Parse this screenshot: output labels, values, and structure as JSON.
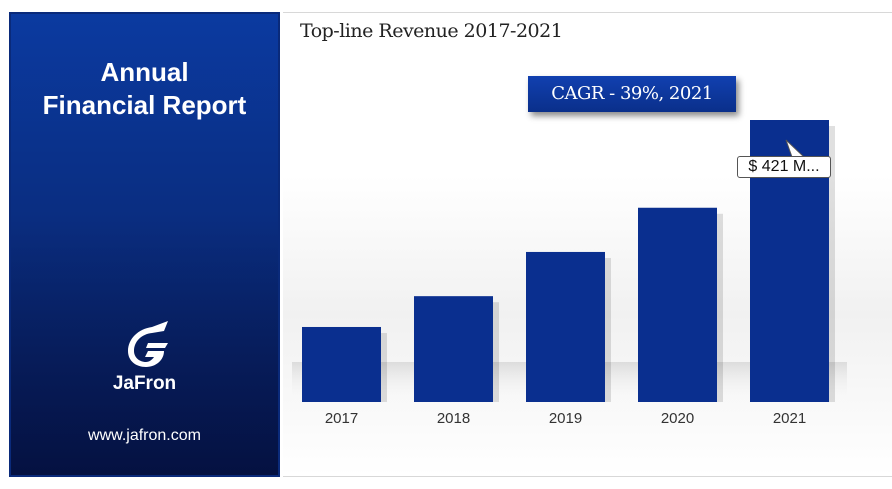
{
  "sidebar": {
    "title_line1": "Annual",
    "title_line2": "Financial Report",
    "logo_name": "JaFron",
    "website": "www.jafron.com"
  },
  "chart_header": {
    "title": "Top-line Revenue 2017-2021",
    "cagr": "CAGR - 39%, 2021",
    "callout": "$ 421 M..."
  },
  "colors": {
    "bar": "#0a2f8f",
    "panel": "#0b3aa0"
  },
  "chart_data": {
    "type": "bar",
    "title": "Top-line Revenue 2017-2021",
    "categories": [
      "2017",
      "2018",
      "2019",
      "2020",
      "2021"
    ],
    "values": [
      112,
      158,
      224,
      290,
      421
    ],
    "ylim": [
      0,
      421
    ],
    "annotations": [
      "CAGR - 39%, 2021",
      "$ 421 M..."
    ],
    "grid": false,
    "legend": "none"
  }
}
